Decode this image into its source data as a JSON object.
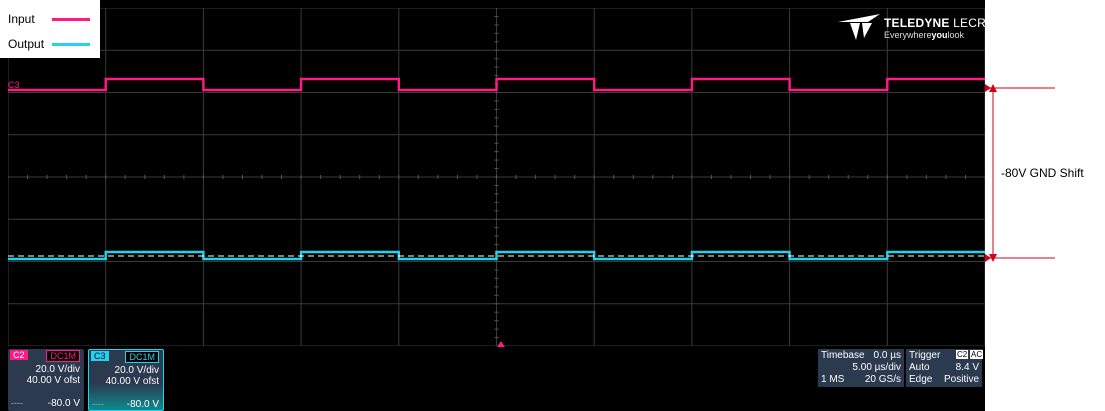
{
  "legend": {
    "input_label": "Input",
    "output_label": "Output",
    "input_color": "#ff1a85",
    "output_color": "#22d3ee"
  },
  "logo": {
    "brand_main": "TELEDYNE",
    "brand_sub": "LECROY",
    "tagline_a": "Everywhere",
    "tagline_b": "you",
    "tagline_c": "look"
  },
  "channel_marker": "C3",
  "channels": [
    {
      "tag": "C2",
      "coupling": "DC1M",
      "vdiv": "20.0 V/div",
      "offset": "40.00 V ofst",
      "dash": "----",
      "level": "-80.0 V",
      "color": "#ff1a85"
    },
    {
      "tag": "C3",
      "coupling": "DC1M",
      "vdiv": "20.0 V/div",
      "offset": "40.00 V ofst",
      "dash": "----",
      "level": "-80.0 V",
      "color": "#22d3ee"
    }
  ],
  "timebase": {
    "label": "Timebase",
    "delay": "0.0 µs",
    "per_div": "5.00 µs/div",
    "points": "1 MS",
    "rate": "20 GS/s"
  },
  "trigger": {
    "label": "Trigger",
    "source": "C2",
    "coupling": "AC",
    "mode": "Auto",
    "level": "8.4 V",
    "type": "Edge",
    "slope": "Positive"
  },
  "annotation": {
    "text": "-80V GND Shift",
    "color": "#d0021b"
  }
}
